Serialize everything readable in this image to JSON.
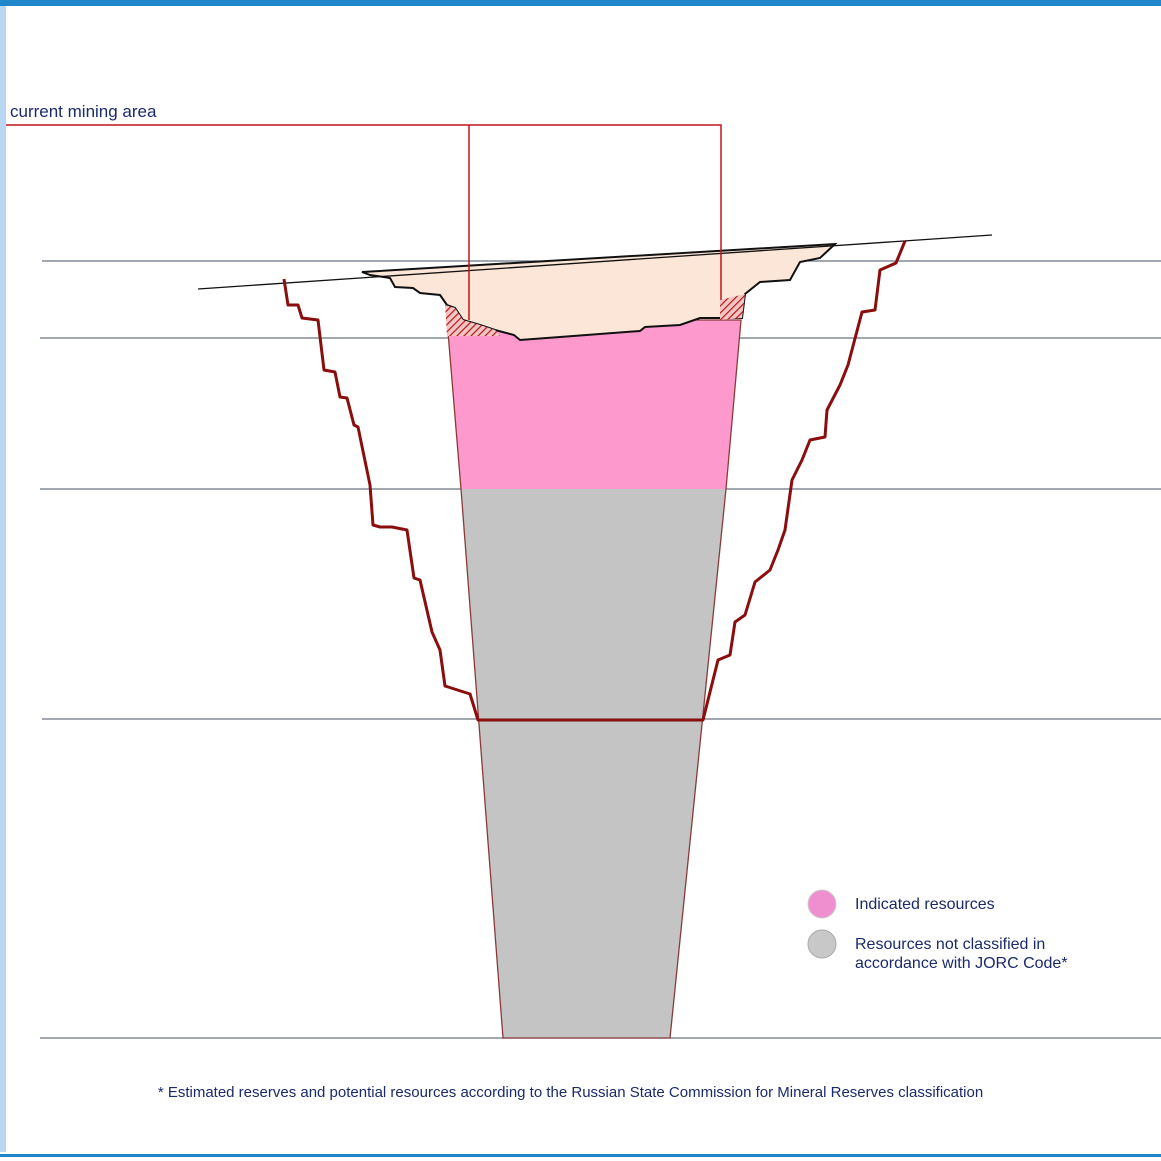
{
  "callout": {
    "label": "current mining area"
  },
  "legend": [
    {
      "label": "Indicated resources"
    },
    {
      "label": "Resources not classified in accordance with JORC Code*"
    }
  ],
  "footnote": "* Estimated reserves and potential resources according to the Russian State Commission for Mineral Reserves classification"
}
